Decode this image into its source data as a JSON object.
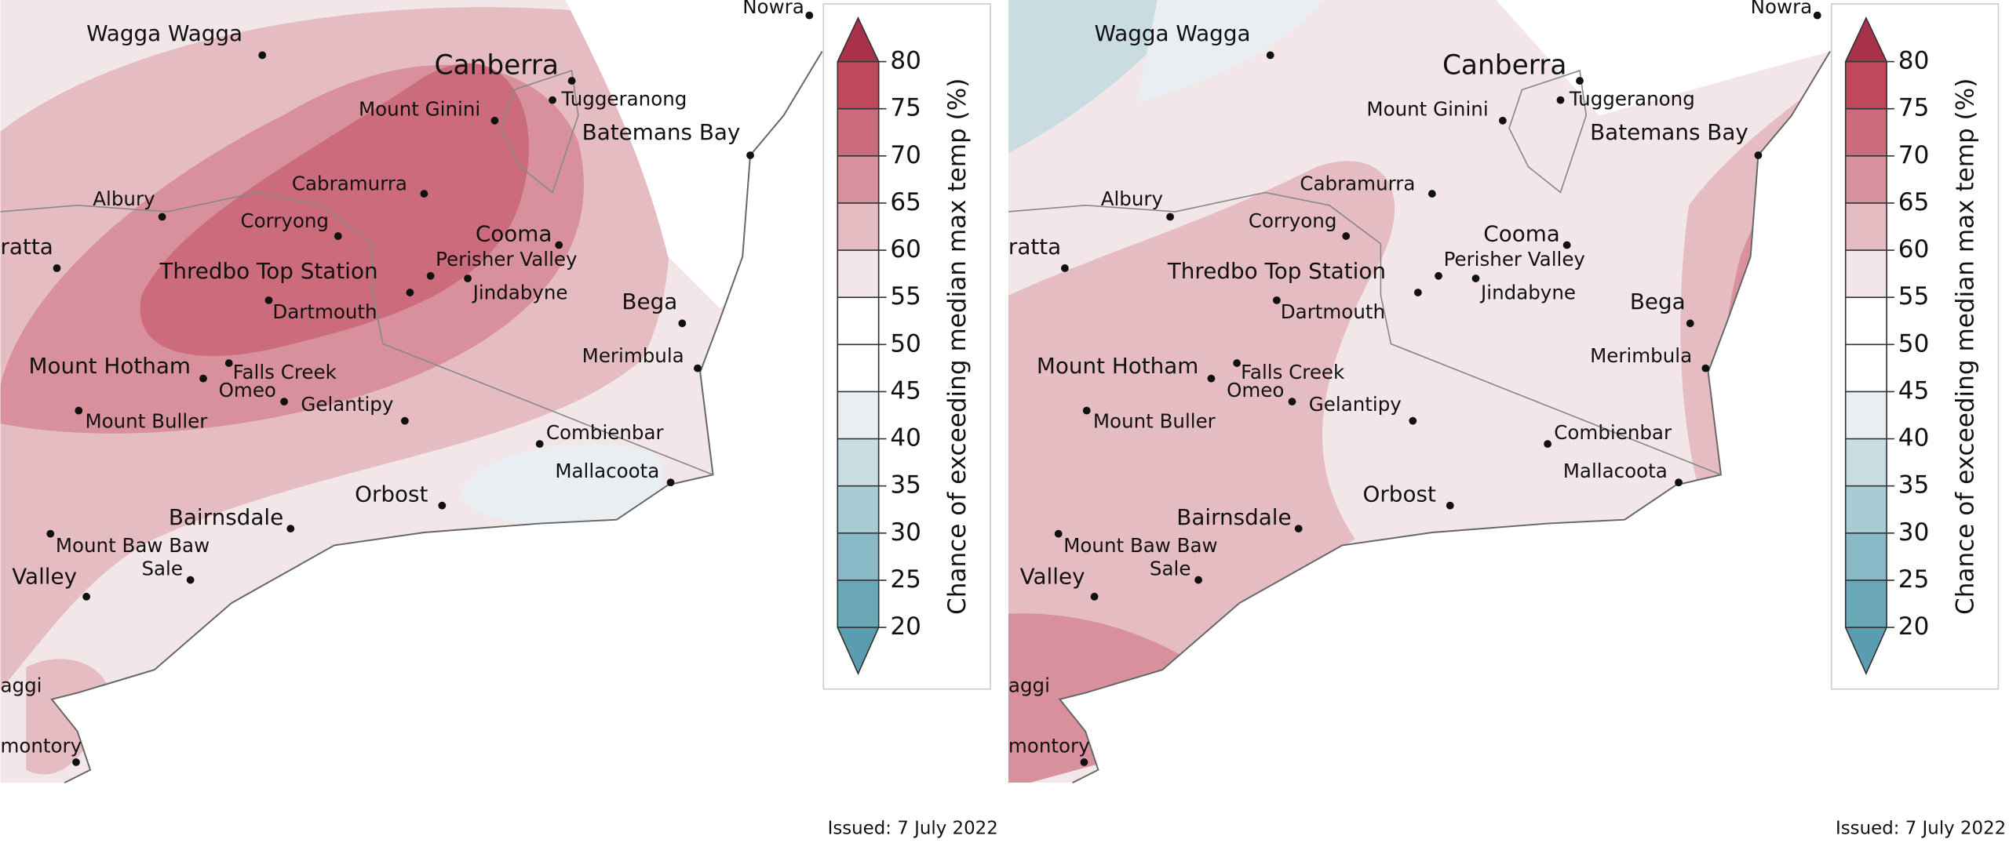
{
  "panels": [
    {
      "places": [
        "Nowra",
        "Wagga Wagga",
        "Canberra",
        "Tuggeranong",
        "Mount Ginini",
        "Batemans Bay",
        "Albury",
        "Cabramurra",
        "Corryong",
        "Cooma",
        "Perisher Valley",
        "Thredbo Top Station",
        "Jindabyne",
        "Dartmouth",
        "Bega",
        "Merimbula",
        "Mount Hotham",
        "Falls Creek",
        "Omeo",
        "Gelantipy",
        "Mount Buller",
        "Combienbar",
        "Mallacoota",
        "Orbost",
        "Bairnsdale",
        "Mount Baw Baw",
        "Sale",
        "Valley",
        "ratta",
        "aggi",
        "montory"
      ],
      "legend": {
        "title": "Chance of exceeding median max temp (%)",
        "ticks": [
          80,
          75,
          70,
          65,
          60,
          55,
          50,
          45,
          40,
          35,
          30,
          25,
          20
        ],
        "colors": [
          "#c0485c",
          "#cc6b7b",
          "#d8909c",
          "#e6bcc3",
          "#f2e6e8",
          "#ffffff",
          "#ffffff",
          "#e8eef2",
          "#c8dce2",
          "#a9cbd4",
          "#88b9c6",
          "#6aa8b8"
        ],
        "over_color": "#a8324a",
        "under_color": "#5a9db0"
      },
      "issued": "Issued: 7 July 2022"
    },
    {
      "places": [
        "Nowra",
        "Wagga Wagga",
        "Canberra",
        "Tuggeranong",
        "Mount Ginini",
        "Batemans Bay",
        "Albury",
        "Cabramurra",
        "Corryong",
        "Cooma",
        "Perisher Valley",
        "Thredbo Top Station",
        "Jindabyne",
        "Dartmouth",
        "Bega",
        "Merimbula",
        "Mount Hotham",
        "Falls Creek",
        "Omeo",
        "Gelantipy",
        "Mount Buller",
        "Combienbar",
        "Mallacoota",
        "Orbost",
        "Bairnsdale",
        "Mount Baw Baw",
        "Sale",
        "Valley",
        "ratta",
        "aggi",
        "montory"
      ],
      "legend": {
        "title": "Chance of exceeding median max temp (%)",
        "ticks": [
          80,
          75,
          70,
          65,
          60,
          55,
          50,
          45,
          40,
          35,
          30,
          25,
          20
        ],
        "colors": [
          "#c0485c",
          "#cc6b7b",
          "#d8909c",
          "#e6bcc3",
          "#f2e6e8",
          "#ffffff",
          "#ffffff",
          "#e8eef2",
          "#c8dce2",
          "#a9cbd4",
          "#88b9c6",
          "#6aa8b8"
        ],
        "over_color": "#a8324a",
        "under_color": "#5a9db0"
      },
      "issued": "Issued: 7 July 2022"
    }
  ]
}
